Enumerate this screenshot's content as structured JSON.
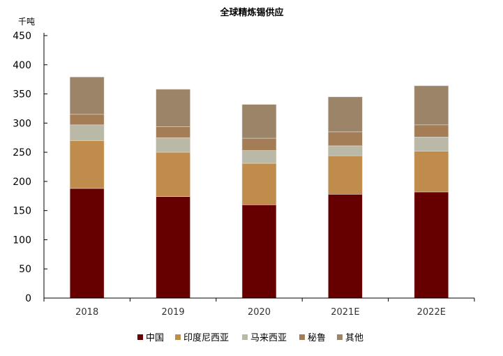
{
  "chart_data": {
    "type": "bar",
    "stacked": true,
    "title": "全球精炼锡供应",
    "ylabel": "千吨",
    "xlabel": "",
    "ylim": [
      0,
      450
    ],
    "yticks": [
      0,
      50,
      100,
      150,
      200,
      250,
      300,
      350,
      400,
      450
    ],
    "grid": false,
    "legend_position": "bottom",
    "categories": [
      "2018",
      "2019",
      "2020",
      "2021E",
      "2022E"
    ],
    "series": [
      {
        "name": "中国",
        "color": "#660000",
        "values": [
          188,
          174,
          160,
          178,
          182
        ]
      },
      {
        "name": "印度尼西亚",
        "color": "#bf8c4b",
        "values": [
          82,
          76,
          71,
          66,
          70
        ]
      },
      {
        "name": "马来西亚",
        "color": "#bab9a8",
        "values": [
          27,
          25,
          22,
          17,
          24
        ]
      },
      {
        "name": "秘鲁",
        "color": "#a47c55",
        "values": [
          18,
          19,
          21,
          24,
          21
        ]
      },
      {
        "name": "其他",
        "color": "#9c8468",
        "values": [
          64,
          64,
          58,
          60,
          67
        ]
      }
    ]
  }
}
